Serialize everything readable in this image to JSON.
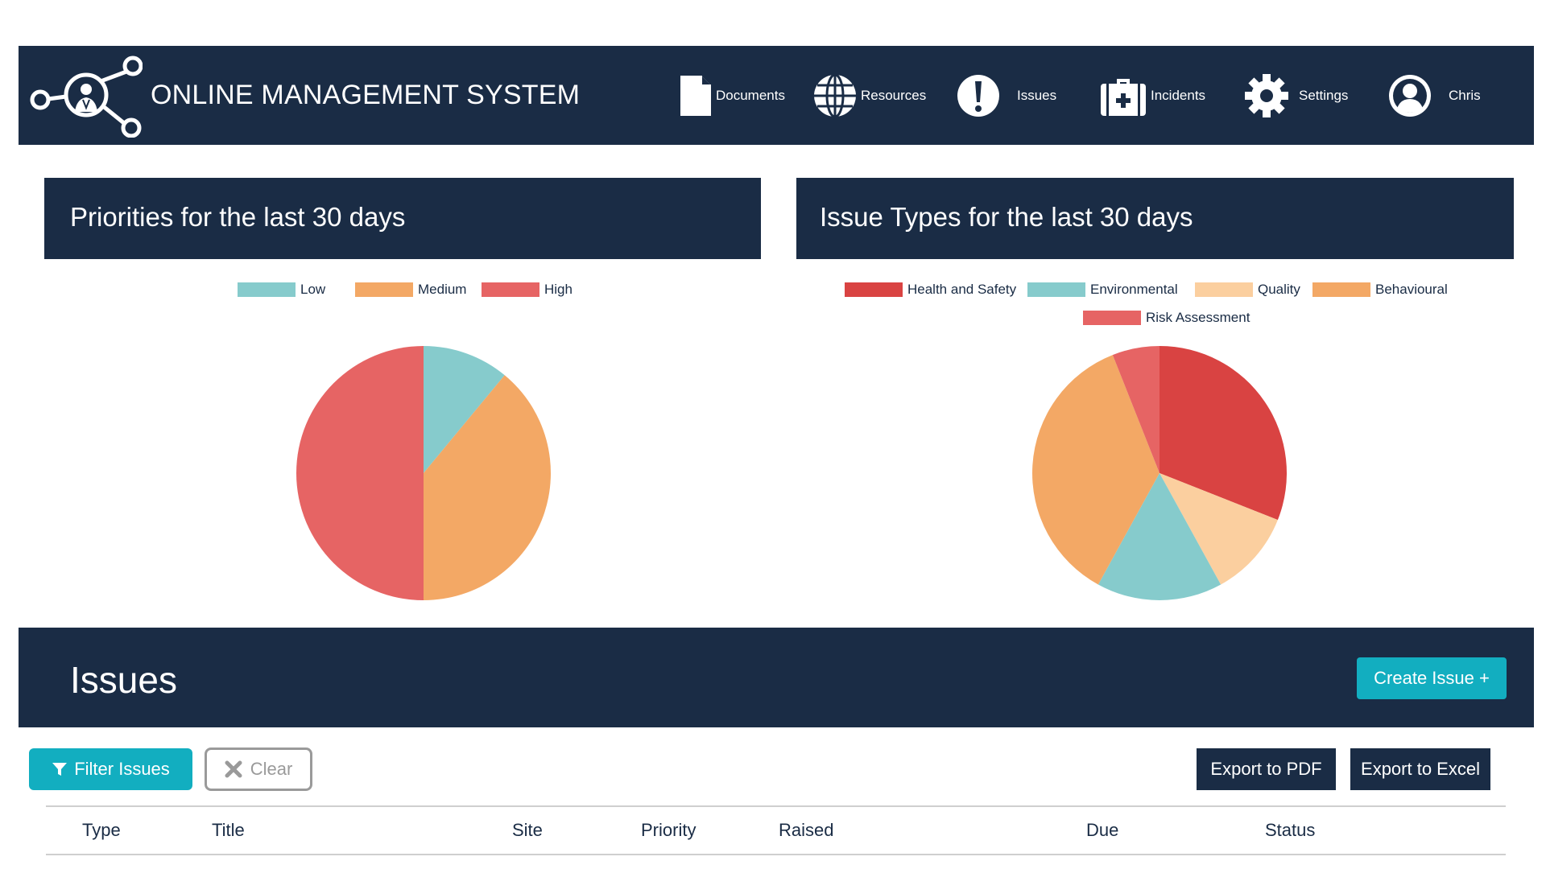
{
  "header": {
    "title": "ONLINE MANAGEMENT SYSTEM",
    "nav": [
      {
        "label": "Documents",
        "icon": "document-icon"
      },
      {
        "label": "Resources",
        "icon": "globe-icon"
      },
      {
        "label": "Issues",
        "icon": "exclamation-icon"
      },
      {
        "label": "Incidents",
        "icon": "first-aid-kit-icon"
      },
      {
        "label": "Settings",
        "icon": "gear-icon"
      },
      {
        "label": "Chris",
        "icon": "user-avatar-icon"
      }
    ]
  },
  "panels": {
    "priorities_title": "Priorities for the last 30 days",
    "types_title": "Issue Types for the last 30 days"
  },
  "chart_data": [
    {
      "type": "pie",
      "title": "Priorities for the last 30 days",
      "categories": [
        "Low",
        "Medium",
        "High"
      ],
      "values": [
        11,
        39,
        50
      ],
      "colors": [
        "#86cbcc",
        "#f3a865",
        "#e66464"
      ],
      "legend": "top"
    },
    {
      "type": "pie",
      "title": "Issue Types for the last 30 days",
      "categories": [
        "Health and Safety",
        "Environmental",
        "Quality",
        "Behavioural",
        "Risk Assessment"
      ],
      "slice_order": [
        "Health and Safety",
        "Quality",
        "Environmental",
        "Behavioural",
        "Risk Assessment"
      ],
      "values": [
        31,
        16,
        11,
        36,
        6
      ],
      "colors": [
        "#d94342",
        "#86cbcc",
        "#fbcf9f",
        "#f3a865",
        "#e66464"
      ],
      "legend": "top"
    }
  ],
  "issues": {
    "title": "Issues",
    "create_label": "Create Issue +",
    "filter_label": "Filter Issues",
    "clear_label": "Clear",
    "export_pdf_label": "Export to PDF",
    "export_excel_label": "Export to Excel",
    "columns": [
      "Type",
      "Title",
      "Site",
      "Priority",
      "Raised",
      "Due",
      "Status"
    ]
  },
  "colors": {
    "navy": "#1a2c45",
    "teal": "#12aec0"
  }
}
